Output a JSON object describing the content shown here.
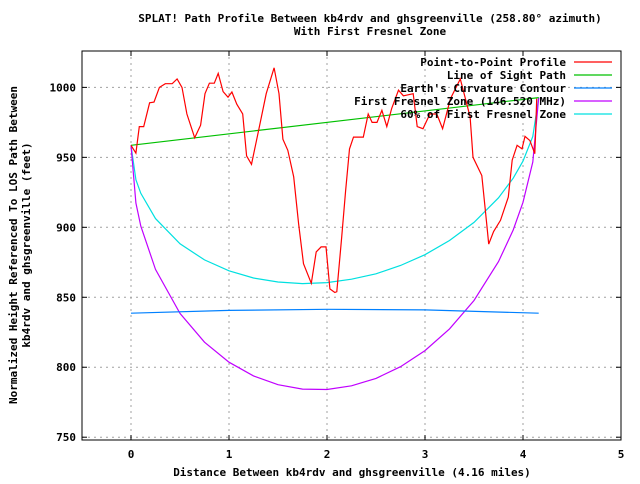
{
  "chart_data": {
    "type": "line",
    "title": "SPLAT! Path Profile Between kb4rdv and ghsgreenville (258.80° azimuth)",
    "subtitle": "With First Fresnel Zone",
    "xlabel": "Distance Between kb4rdv and ghsgreenville (4.16 miles)",
    "ylabel_lines": [
      "Normalized Height Referenced To LOS Path Between",
      "kb4rdv and ghsgreenville (feet)"
    ],
    "xlim": [
      -0.5,
      5
    ],
    "ylim": [
      748,
      1026
    ],
    "xticks": [
      "0",
      "1",
      "2",
      "3",
      "4",
      "5"
    ],
    "xtick_values": [
      0,
      1,
      2,
      3,
      4,
      5
    ],
    "yticks": [
      "750",
      "800",
      "850",
      "900",
      "950",
      "1000"
    ],
    "ytick_values": [
      750,
      800,
      850,
      900,
      950,
      1000
    ],
    "grid": true,
    "legend_placement": "top-right",
    "series": [
      {
        "name": "Point-to-Point Profile",
        "color": "#ff0000",
        "x": [
          0,
          0.05,
          0.085,
          0.13,
          0.19,
          0.235,
          0.29,
          0.35,
          0.42,
          0.47,
          0.52,
          0.57,
          0.65,
          0.71,
          0.755,
          0.8,
          0.85,
          0.89,
          0.94,
          0.99,
          1.03,
          1.08,
          1.14,
          1.18,
          1.23,
          1.31,
          1.38,
          1.46,
          1.51,
          1.55,
          1.6,
          1.66,
          1.71,
          1.76,
          1.84,
          1.89,
          1.94,
          1.99,
          2.03,
          2.08,
          2.1,
          2.15,
          2.19,
          2.23,
          2.27,
          2.37,
          2.42,
          2.46,
          2.51,
          2.56,
          2.61,
          2.66,
          2.73,
          2.78,
          2.88,
          2.92,
          2.98,
          3.05,
          3.12,
          3.18,
          3.26,
          3.36,
          3.46,
          3.49,
          3.58,
          3.63,
          3.65,
          3.7,
          3.77,
          3.85,
          3.89,
          3.94,
          3.99,
          4.02,
          4.07,
          4.12,
          4.13,
          4.14
        ],
        "y": [
          958.6,
          953,
          972,
          972,
          989,
          989.5,
          1000,
          1002.6,
          1002.6,
          1006,
          1000,
          981,
          964,
          973,
          995.5,
          1003,
          1003,
          1010,
          997,
          993,
          996.7,
          988,
          981,
          951,
          945,
          972,
          995.5,
          1014,
          995.5,
          963,
          955,
          936,
          902.6,
          874,
          860,
          882.4,
          886,
          886,
          856,
          853.4,
          854,
          893,
          926,
          956,
          964.5,
          964.5,
          981,
          975,
          975,
          983.6,
          972,
          985,
          998,
          994,
          995.5,
          972,
          970.5,
          981,
          981,
          970.5,
          992,
          1006,
          979,
          950,
          937,
          902.6,
          888,
          897,
          905,
          921.6,
          948,
          958.6,
          956,
          965,
          962,
          952.6,
          969,
          992
        ]
      },
      {
        "name": "Line of Sight Path",
        "color": "#00c000",
        "x": [
          0,
          4.16
        ],
        "y": [
          958.6,
          992.7
        ]
      },
      {
        "name": "Earth's Curvature Contour",
        "color": "#0080ff",
        "x": [
          0,
          1,
          2,
          3,
          4.16
        ],
        "y": [
          838.6,
          840.6,
          841.4,
          841.0,
          838.6
        ]
      },
      {
        "name": "First Fresnel Zone (146.520 MHz)",
        "color": "#c000ff",
        "x": [
          0,
          0.05,
          0.1,
          0.25,
          0.5,
          0.75,
          1,
          1.25,
          1.5,
          1.75,
          2,
          2.25,
          2.5,
          2.75,
          3,
          3.25,
          3.5,
          3.75,
          3.9,
          4,
          4.1,
          4.16
        ],
        "y": [
          958.6,
          917.4,
          900.9,
          869.9,
          838.5,
          817.9,
          803.6,
          793.8,
          787.5,
          784.4,
          784.1,
          786.7,
          792.0,
          800.4,
          811.9,
          827.4,
          847.7,
          875.5,
          898.1,
          917.9,
          946.7,
          992.7
        ]
      },
      {
        "name": "60% of First Fresnel Zone",
        "color": "#00e0e0",
        "x": [
          0,
          0.05,
          0.1,
          0.25,
          0.5,
          0.75,
          1,
          1.25,
          1.5,
          1.75,
          2,
          2.25,
          2.5,
          2.75,
          3,
          3.25,
          3.5,
          3.75,
          3.9,
          4,
          4.1,
          4.16
        ],
        "y": [
          958.6,
          934.0,
          924.3,
          906.2,
          888.2,
          876.7,
          868.9,
          863.8,
          860.9,
          859.8,
          860.5,
          862.9,
          866.8,
          872.7,
          880.4,
          890.6,
          903.5,
          921.1,
          935.1,
          947.3,
          964.9,
          992.7
        ]
      }
    ]
  }
}
